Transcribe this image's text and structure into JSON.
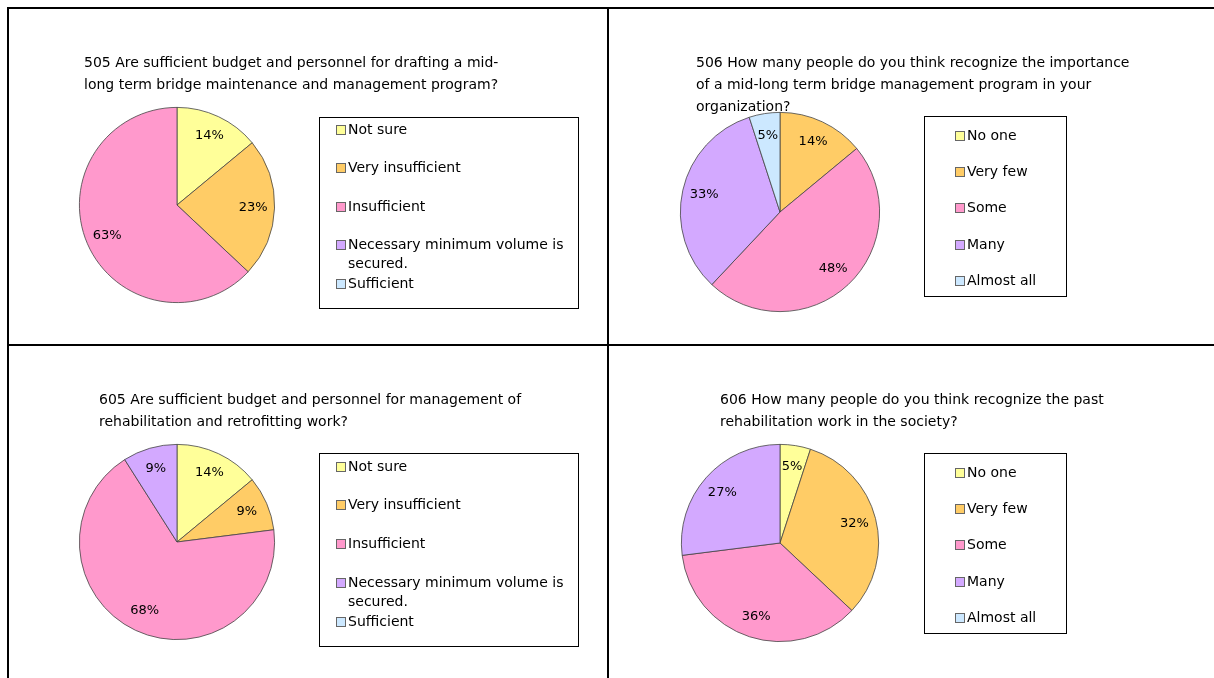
{
  "chart_data": [
    {
      "type": "pie",
      "title": "505 Are sufficient budget and personnel for drafting a mid-long term bridge maintenance and management program?",
      "categories": [
        "Not sure",
        "Very insufficient",
        "Insufficient",
        "Necessary minimum volume is secured.",
        "Sufficient"
      ],
      "values": [
        14,
        23,
        63,
        0,
        0
      ],
      "colors": [
        "#ffff99",
        "#ffcc66",
        "#ff99cc",
        "#d3a9ff",
        "#cce8ff"
      ],
      "value_labels": [
        "14%",
        "23%",
        "63%",
        null,
        null
      ],
      "legend": "right"
    },
    {
      "type": "pie",
      "title": "506 How many people do you think recognize the importance of a mid-long term bridge management program in your organization?",
      "categories": [
        "No one",
        "Very few",
        "Some",
        "Many",
        "Almost all"
      ],
      "values": [
        0,
        14,
        48,
        33,
        5
      ],
      "colors": [
        "#ffff99",
        "#ffcc66",
        "#ff99cc",
        "#d3a9ff",
        "#cce8ff"
      ],
      "value_labels": [
        null,
        "14%",
        "48%",
        "33%",
        "5%"
      ],
      "legend": "right"
    },
    {
      "type": "pie",
      "title": "605 Are sufficient budget and personnel for management of rehabilitation and retrofitting work?",
      "categories": [
        "Not sure",
        "Very insufficient",
        "Insufficient",
        "Necessary minimum volume is secured.",
        "Sufficient"
      ],
      "values": [
        14,
        9,
        68,
        9,
        0
      ],
      "colors": [
        "#ffff99",
        "#ffcc66",
        "#ff99cc",
        "#d3a9ff",
        "#cce8ff"
      ],
      "value_labels": [
        "14%",
        "9%",
        "68%",
        "9%",
        null
      ],
      "legend": "right"
    },
    {
      "type": "pie",
      "title": "606 How many people do you think recognize the past rehabilitation work in the society?",
      "categories": [
        "No one",
        "Very few",
        "Some",
        "Many",
        "Almost all"
      ],
      "values": [
        5,
        32,
        36,
        27,
        0
      ],
      "colors": [
        "#ffff99",
        "#ffcc66",
        "#ff99cc",
        "#d3a9ff",
        "#cce8ff"
      ],
      "value_labels": [
        "5%",
        "32%",
        "36%",
        "27%",
        null
      ],
      "legend": "right"
    }
  ]
}
